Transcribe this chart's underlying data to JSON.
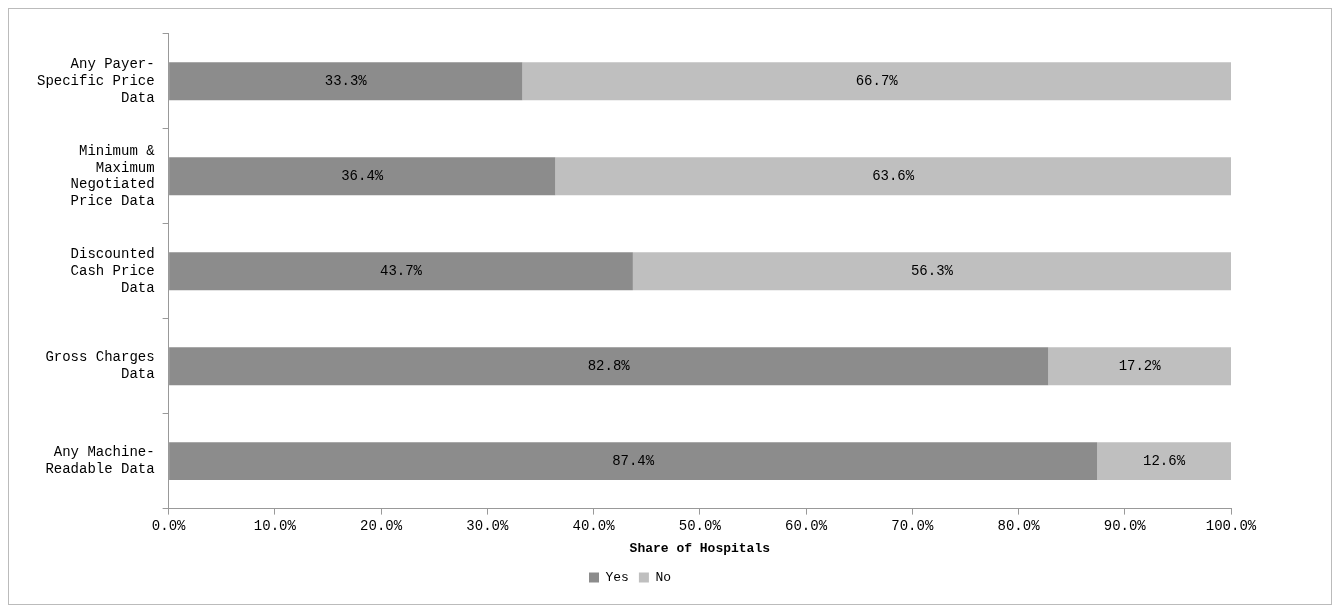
{
  "chart_data": {
    "type": "bar",
    "orientation": "horizontal",
    "stacked": true,
    "xlabel": "Share of Hospitals",
    "categories": [
      "Any Payer-Specific Price Data",
      "Minimum & Maximum Negotiated Price Data",
      "Discounted Cash Price Data",
      "Gross Charges Data",
      "Any Machine-Readable Data"
    ],
    "series": [
      {
        "name": "Yes",
        "color": "#8c8c8c",
        "values": [
          33.3,
          36.4,
          43.7,
          82.8,
          87.4
        ],
        "value_labels": [
          "33.3%",
          "36.4%",
          "43.7%",
          "82.8%",
          "87.4%"
        ]
      },
      {
        "name": "No",
        "color": "#bfbfbf",
        "values": [
          66.7,
          63.6,
          56.3,
          17.2,
          12.6
        ],
        "value_labels": [
          "66.7%",
          "63.6%",
          "56.3%",
          "17.2%",
          "12.6%"
        ]
      }
    ],
    "xlim": [
      0,
      100
    ],
    "xticks": [
      {
        "value": 0,
        "label": "0.0%"
      },
      {
        "value": 10,
        "label": "10.0%"
      },
      {
        "value": 20,
        "label": "20.0%"
      },
      {
        "value": 30,
        "label": "30.0%"
      },
      {
        "value": 40,
        "label": "40.0%"
      },
      {
        "value": 50,
        "label": "50.0%"
      },
      {
        "value": 60,
        "label": "60.0%"
      },
      {
        "value": 70,
        "label": "70.0%"
      },
      {
        "value": 80,
        "label": "80.0%"
      },
      {
        "value": 90,
        "label": "90.0%"
      },
      {
        "value": 100,
        "label": "100.0%"
      }
    ],
    "grid": false,
    "legend": "bottom"
  }
}
